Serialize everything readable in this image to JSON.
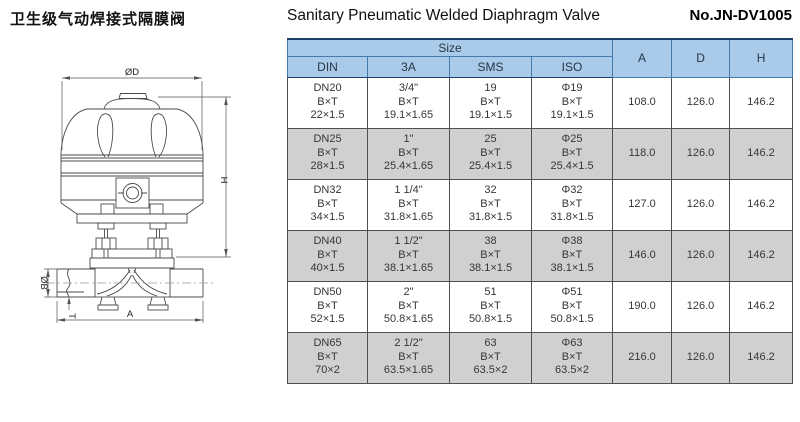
{
  "page": {
    "title_zh": "卫生级气动焊接式隔膜阀",
    "title_en": "Sanitary Pneumatic Welded Diaphragm Valve",
    "model_no": "No.JN-DV1005"
  },
  "drawing": {
    "dim_labels": {
      "top_diameter": "ØD",
      "height": "H",
      "pipe_diameter": "ØB",
      "wall_thickness": "T",
      "face_to_face": "A"
    }
  },
  "table": {
    "size_group_label": "Size",
    "size_columns": [
      "DIN",
      "3A",
      "SMS",
      "ISO"
    ],
    "dim_columns": [
      "A",
      "D",
      "H"
    ],
    "rows": [
      {
        "DIN": [
          "DN20",
          "B×T",
          "22×1.5"
        ],
        "3A": [
          "3/4\"",
          "B×T",
          "19.1×1.65"
        ],
        "SMS": [
          "19",
          "B×T",
          "19.1×1.5"
        ],
        "ISO": [
          "Φ19",
          "B×T",
          "19.1×1.5"
        ],
        "A": "108.0",
        "D": "126.0",
        "H": "146.2"
      },
      {
        "DIN": [
          "DN25",
          "B×T",
          "28×1.5"
        ],
        "3A": [
          "1\"",
          "B×T",
          "25.4×1.65"
        ],
        "SMS": [
          "25",
          "B×T",
          "25.4×1.5"
        ],
        "ISO": [
          "Φ25",
          "B×T",
          "25.4×1.5"
        ],
        "A": "118.0",
        "D": "126.0",
        "H": "146.2"
      },
      {
        "DIN": [
          "DN32",
          "B×T",
          "34×1.5"
        ],
        "3A": [
          "1 1/4\"",
          "B×T",
          "31.8×1.65"
        ],
        "SMS": [
          "32",
          "B×T",
          "31.8×1.5"
        ],
        "ISO": [
          "Φ32",
          "B×T",
          "31.8×1.5"
        ],
        "A": "127.0",
        "D": "126.0",
        "H": "146.2"
      },
      {
        "DIN": [
          "DN40",
          "B×T",
          "40×1.5"
        ],
        "3A": [
          "1 1/2\"",
          "B×T",
          "38.1×1.65"
        ],
        "SMS": [
          "38",
          "B×T",
          "38.1×1.5"
        ],
        "ISO": [
          "Φ38",
          "B×T",
          "38.1×1.5"
        ],
        "A": "146.0",
        "D": "126.0",
        "H": "146.2"
      },
      {
        "DIN": [
          "DN50",
          "B×T",
          "52×1.5"
        ],
        "3A": [
          "2\"",
          "B×T",
          "50.8×1.65"
        ],
        "SMS": [
          "51",
          "B×T",
          "50.8×1.5"
        ],
        "ISO": [
          "Φ51",
          "B×T",
          "50.8×1.5"
        ],
        "A": "190.0",
        "D": "126.0",
        "H": "146.2"
      },
      {
        "DIN": [
          "DN65",
          "B×T",
          "70×2"
        ],
        "3A": [
          "2 1/2\"",
          "B×T",
          "63.5×1.65"
        ],
        "SMS": [
          "63",
          "B×T",
          "63.5×2"
        ],
        "ISO": [
          "Φ63",
          "B×T",
          "63.5×2"
        ],
        "A": "216.0",
        "D": "126.0",
        "H": "146.2"
      }
    ]
  },
  "colors": {
    "header_bg": "#a9cae8",
    "header_border": "#4679ad",
    "header_dark_line": "#1d4068",
    "row_alt_bg": "#d0d0d0",
    "grid": "#4f4f4f",
    "text": "#363636"
  }
}
